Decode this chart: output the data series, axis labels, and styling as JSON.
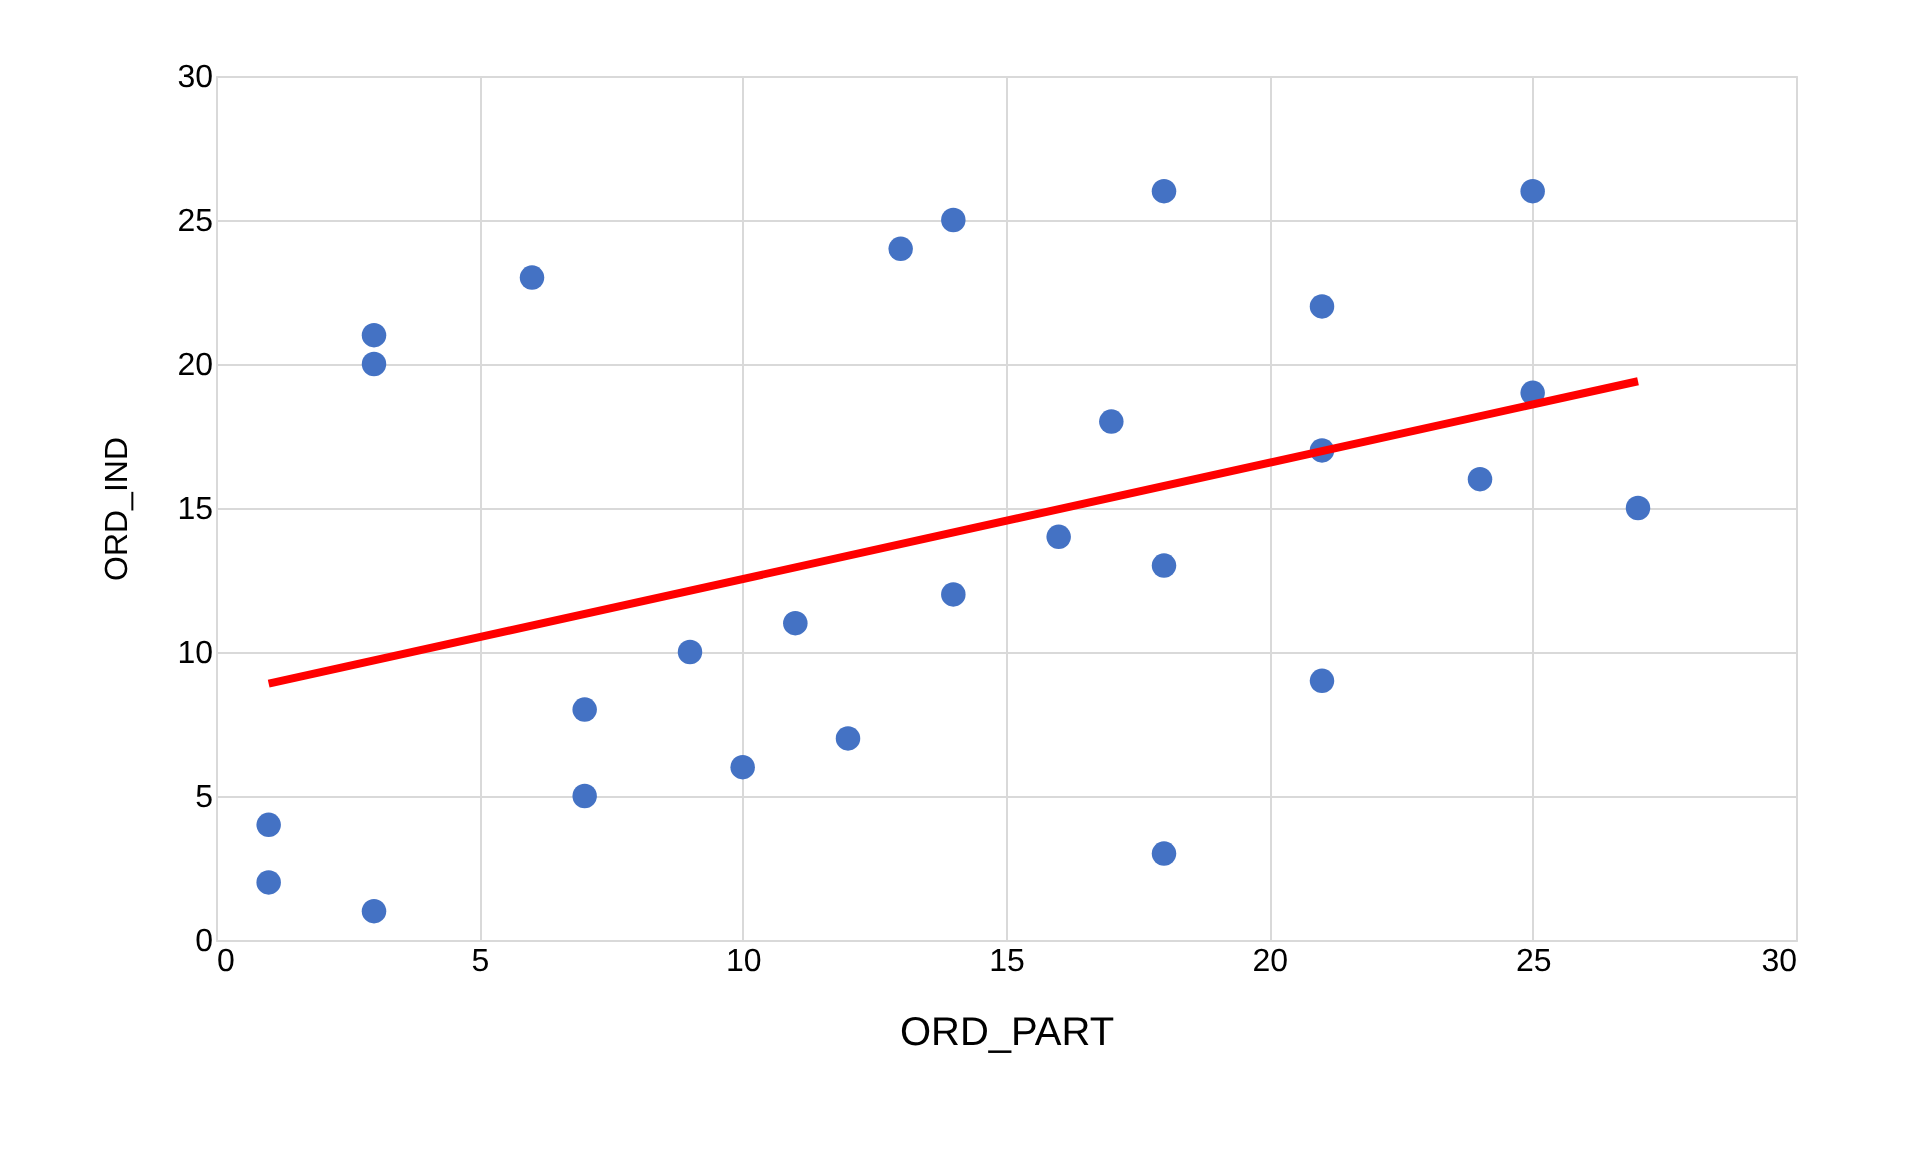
{
  "chart_data": {
    "type": "scatter",
    "xlabel": "ORD_PART",
    "ylabel": "ORD_IND",
    "xlim": [
      0,
      30
    ],
    "ylim": [
      0,
      30
    ],
    "xticks": [
      0,
      5,
      10,
      15,
      20,
      25,
      30
    ],
    "yticks": [
      0,
      5,
      10,
      15,
      20,
      25,
      30
    ],
    "grid": true,
    "legend": false,
    "series": [
      {
        "color": "#4472c4",
        "marker": "circle",
        "x": [
          1,
          1,
          3,
          3,
          3,
          6,
          7,
          7,
          9,
          10,
          11,
          12,
          13,
          14,
          14,
          16,
          17,
          18,
          18,
          18,
          21,
          21,
          21,
          24,
          25,
          25,
          27
        ],
        "values": [
          4,
          2,
          1,
          21,
          20,
          23,
          8,
          5,
          10,
          6,
          11,
          7,
          24,
          25,
          12,
          14,
          18,
          26,
          13,
          3,
          22,
          17,
          9,
          16,
          26,
          19,
          15
        ]
      },
      {
        "type": "line",
        "color": "#ff0000",
        "marker": "none",
        "x": [
          1,
          27
        ],
        "values": [
          8.9,
          19.4
        ],
        "line_style": "solid"
      }
    ]
  }
}
